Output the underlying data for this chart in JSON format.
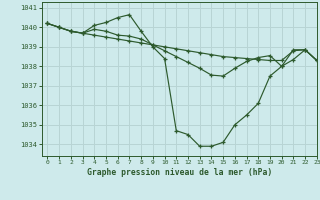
{
  "title": "Graphe pression niveau de la mer (hPa)",
  "background_color": "#ceeaeb",
  "grid_color": "#b8d4d4",
  "line_color": "#2d5a2d",
  "xlim": [
    -0.5,
    23
  ],
  "ylim": [
    1033.4,
    1041.3
  ],
  "yticks": [
    1034,
    1035,
    1036,
    1037,
    1038,
    1039,
    1040,
    1041
  ],
  "xticks": [
    0,
    1,
    2,
    3,
    4,
    5,
    6,
    7,
    8,
    9,
    10,
    11,
    12,
    13,
    14,
    15,
    16,
    17,
    18,
    19,
    20,
    21,
    22,
    23
  ],
  "series1": [
    1040.2,
    1040.0,
    1039.8,
    1039.7,
    1039.6,
    1039.5,
    1039.4,
    1039.3,
    1039.2,
    1039.1,
    1039.0,
    1038.9,
    1038.8,
    1038.7,
    1038.6,
    1038.5,
    1038.45,
    1038.4,
    1038.35,
    1038.3,
    1038.3,
    1038.8,
    1038.85,
    1038.3
  ],
  "series2": [
    1040.2,
    1040.0,
    1039.8,
    1039.7,
    1040.1,
    1040.25,
    1040.5,
    1040.65,
    1039.8,
    1039.0,
    1038.4,
    1034.7,
    1034.5,
    1033.9,
    1033.9,
    1034.1,
    1035.0,
    1035.5,
    1036.1,
    1037.5,
    1038.0,
    1038.35,
    1038.85,
    1038.3
  ],
  "series3": [
    1040.2,
    1040.0,
    1039.8,
    1039.7,
    1039.9,
    1039.8,
    1039.6,
    1039.55,
    1039.4,
    1039.1,
    1038.8,
    1038.5,
    1038.2,
    1037.9,
    1037.55,
    1037.5,
    1037.9,
    1038.25,
    1038.45,
    1038.55,
    1038.0,
    1038.85,
    1038.85,
    1038.3
  ]
}
